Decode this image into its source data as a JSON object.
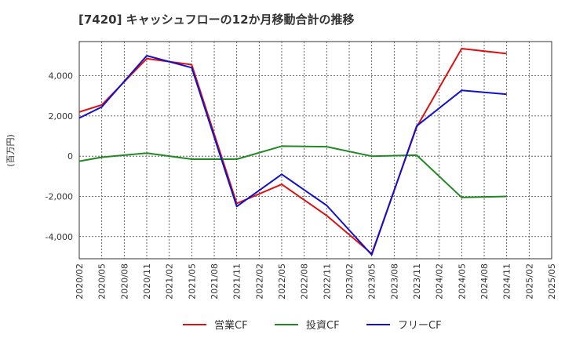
{
  "chart_data": {
    "type": "line",
    "title": "[7420]  キャッシュフローの12か月移動合計の推移",
    "ylabel": "(百万円)",
    "xlabel": "",
    "ylim": [
      -5100,
      5700
    ],
    "yticks": [
      -4000,
      -2000,
      0,
      2000,
      4000
    ],
    "ytick_labels": [
      "-4,000",
      "-2,000",
      "0",
      "2,000",
      "4,000"
    ],
    "categories": [
      "2020/02",
      "2020/05",
      "2020/08",
      "2020/11",
      "2021/02",
      "2021/05",
      "2021/08",
      "2021/11",
      "2022/02",
      "2022/05",
      "2022/08",
      "2022/11",
      "2023/02",
      "2023/05",
      "2023/08",
      "2023/11",
      "2024/02",
      "2024/05",
      "2024/08",
      "2024/11",
      "2025/02",
      "2025/05"
    ],
    "series": [
      {
        "name": "営業CF",
        "color": "#dd1111",
        "values": [
          2200,
          2550,
          null,
          4850,
          null,
          4550,
          null,
          -2350,
          null,
          -1400,
          null,
          -2950,
          null,
          -4850,
          null,
          1450,
          null,
          5350,
          null,
          5100,
          null,
          null
        ]
      },
      {
        "name": "投資CF",
        "color": "#228822",
        "values": [
          -250,
          -50,
          null,
          150,
          null,
          -150,
          null,
          -150,
          null,
          500,
          null,
          470,
          null,
          0,
          null,
          50,
          null,
          -2050,
          null,
          -2000,
          null,
          null
        ]
      },
      {
        "name": "フリーCF",
        "color": "#1111cc",
        "values": [
          1900,
          2450,
          null,
          5000,
          null,
          4400,
          null,
          -2500,
          null,
          -900,
          null,
          -2450,
          null,
          -4900,
          null,
          1500,
          null,
          3270,
          null,
          3080,
          null,
          null
        ]
      }
    ],
    "grid": true,
    "legend_position": "bottom"
  }
}
